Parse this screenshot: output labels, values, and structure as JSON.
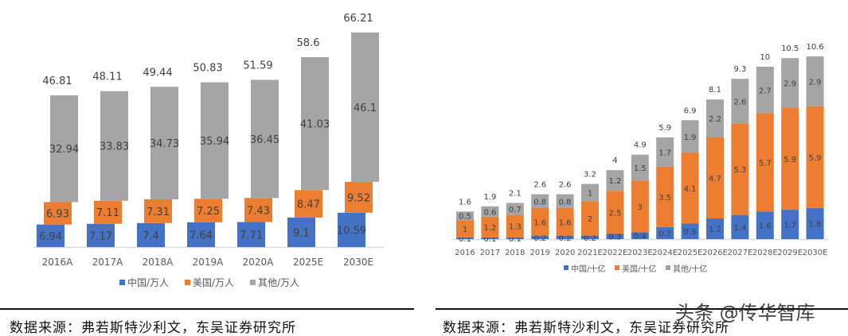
{
  "colors": {
    "china": "#4472c4",
    "us": "#ed7d31",
    "other": "#a5a5a5"
  },
  "chart_data": [
    {
      "type": "bar",
      "stacked": true,
      "categories": [
        "2016A",
        "2017A",
        "2018A",
        "2019A",
        "2020A",
        "2025E",
        "2030E"
      ],
      "series": [
        {
          "name": "中国/万人",
          "values": [
            6.94,
            7.17,
            7.4,
            7.64,
            7.71,
            9.1,
            10.59
          ]
        },
        {
          "name": "美国/万人",
          "values": [
            6.93,
            7.11,
            7.31,
            7.25,
            7.43,
            8.47,
            9.52
          ]
        },
        {
          "name": "其他/万人",
          "values": [
            32.94,
            33.83,
            34.73,
            35.94,
            36.45,
            41.03,
            46.1
          ]
        }
      ],
      "totals": [
        "46.81",
        "48.11",
        "49.44",
        "50.83",
        "51.59",
        "58.6",
        "66.21"
      ],
      "legend": "bottom",
      "grid": false
    },
    {
      "type": "bar",
      "stacked": true,
      "categories": [
        "2016",
        "2017",
        "2018",
        "2019",
        "2020",
        "2021E",
        "2022E",
        "2023E",
        "2024E",
        "2025E",
        "2026E",
        "2027E",
        "2028E",
        "2029E",
        "2030E"
      ],
      "series": [
        {
          "name": "中国/十亿",
          "values": [
            0.1,
            0.1,
            0.1,
            0.2,
            0.2,
            0.2,
            0.3,
            0.4,
            0.7,
            0.9,
            1.2,
            1.4,
            1.6,
            1.7,
            1.8
          ]
        },
        {
          "name": "美国/十亿",
          "values": [
            1,
            1.2,
            1.3,
            1.6,
            1.6,
            2,
            2.5,
            3,
            3.5,
            4.1,
            4.7,
            5.3,
            5.7,
            5.9,
            5.9
          ]
        },
        {
          "name": "其他/十亿",
          "values": [
            0.5,
            0.6,
            0.7,
            0.8,
            0.8,
            1,
            1.2,
            1.5,
            1.7,
            1.9,
            2.2,
            2.6,
            2.7,
            2.9,
            2.9
          ]
        }
      ],
      "totals": [
        "1.6",
        "1.9",
        "2.1",
        "2.6",
        "2.6",
        "3.2",
        "4",
        "4.9",
        "5.9",
        "6.9",
        "8.1",
        "9.3",
        "10",
        "10.5",
        "10.6"
      ],
      "legend": "bottom",
      "grid": false
    }
  ],
  "footer": {
    "left_source": "数据来源：弗若斯特沙利文，东吴证券研究所",
    "right_source": "数据来源：弗若斯特沙利文，东吴证券研究所",
    "watermark": "头条 @传华智库"
  }
}
